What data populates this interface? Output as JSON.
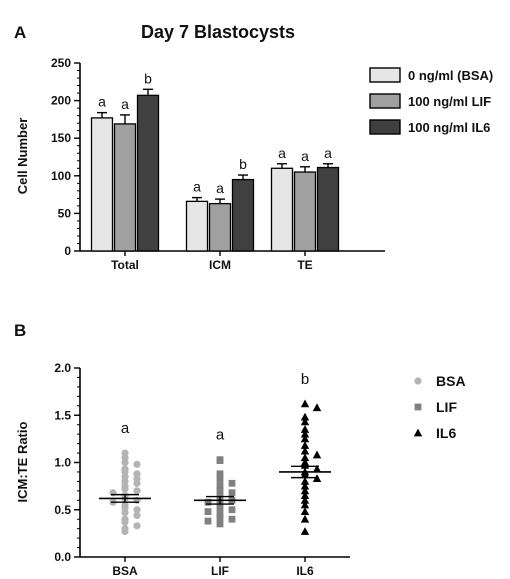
{
  "chart_data": [
    {
      "panel": "A",
      "type": "bar",
      "title": "Day 7 Blastocysts",
      "xlabel": "",
      "ylabel": "Cell Number",
      "ylim": [
        0,
        250
      ],
      "yticks": [
        0,
        50,
        100,
        150,
        200,
        250
      ],
      "categories": [
        "Total",
        "ICM",
        "TE"
      ],
      "series": [
        {
          "name": "0 ng/ml (BSA)",
          "color": "#e6e6e6",
          "values": [
            177,
            66,
            110
          ],
          "errors": [
            7,
            5,
            6
          ],
          "labels": [
            "a",
            "a",
            "a"
          ]
        },
        {
          "name": "100 ng/ml LIF",
          "color": "#a0a0a0",
          "values": [
            169,
            63,
            105
          ],
          "errors": [
            12,
            6,
            7
          ],
          "labels": [
            "a",
            "a",
            "a"
          ]
        },
        {
          "name": "100 ng/ml IL6",
          "color": "#404040",
          "values": [
            207,
            95,
            111
          ],
          "errors": [
            8,
            6,
            5
          ],
          "labels": [
            "b",
            "b",
            "a"
          ]
        }
      ],
      "legend_position": "right",
      "grid": false
    },
    {
      "panel": "B",
      "type": "scatter",
      "title": "",
      "xlabel": "",
      "ylabel": "ICM:TE Ratio",
      "ylim": [
        0,
        2
      ],
      "yticks": [
        "0.0",
        "0.5",
        "1.0",
        "1.5",
        "2.0"
      ],
      "categories": [
        "BSA",
        "LIF",
        "IL6"
      ],
      "series": [
        {
          "name": "BSA",
          "marker": "circle",
          "color": "#b4b4b4",
          "mean": 0.62,
          "sem": 0.04,
          "label": "a",
          "values": [
            1.1,
            1.05,
            1.0,
            0.98,
            0.93,
            0.9,
            0.88,
            0.85,
            0.83,
            0.8,
            0.78,
            0.75,
            0.72,
            0.7,
            0.68,
            0.65,
            0.62,
            0.6,
            0.58,
            0.55,
            0.52,
            0.5,
            0.47,
            0.44,
            0.4,
            0.37,
            0.33,
            0.3,
            0.27
          ]
        },
        {
          "name": "LIF",
          "marker": "square",
          "color": "#808080",
          "mean": 0.6,
          "sem": 0.04,
          "label": "a",
          "values": [
            1.03,
            1.02,
            0.88,
            0.82,
            0.78,
            0.75,
            0.7,
            0.68,
            0.65,
            0.62,
            0.6,
            0.58,
            0.55,
            0.52,
            0.5,
            0.48,
            0.45,
            0.42,
            0.4,
            0.38,
            0.35
          ]
        },
        {
          "name": "IL6",
          "marker": "triangle",
          "color": "#000000",
          "mean": 0.9,
          "sem": 0.06,
          "label": "b",
          "values": [
            1.62,
            1.58,
            1.48,
            1.43,
            1.35,
            1.3,
            1.25,
            1.18,
            1.12,
            1.08,
            1.05,
            1.0,
            0.97,
            0.93,
            0.9,
            0.87,
            0.83,
            0.8,
            0.75,
            0.7,
            0.65,
            0.6,
            0.55,
            0.48,
            0.4,
            0.27
          ]
        }
      ],
      "legend_position": "right",
      "grid": false
    }
  ]
}
